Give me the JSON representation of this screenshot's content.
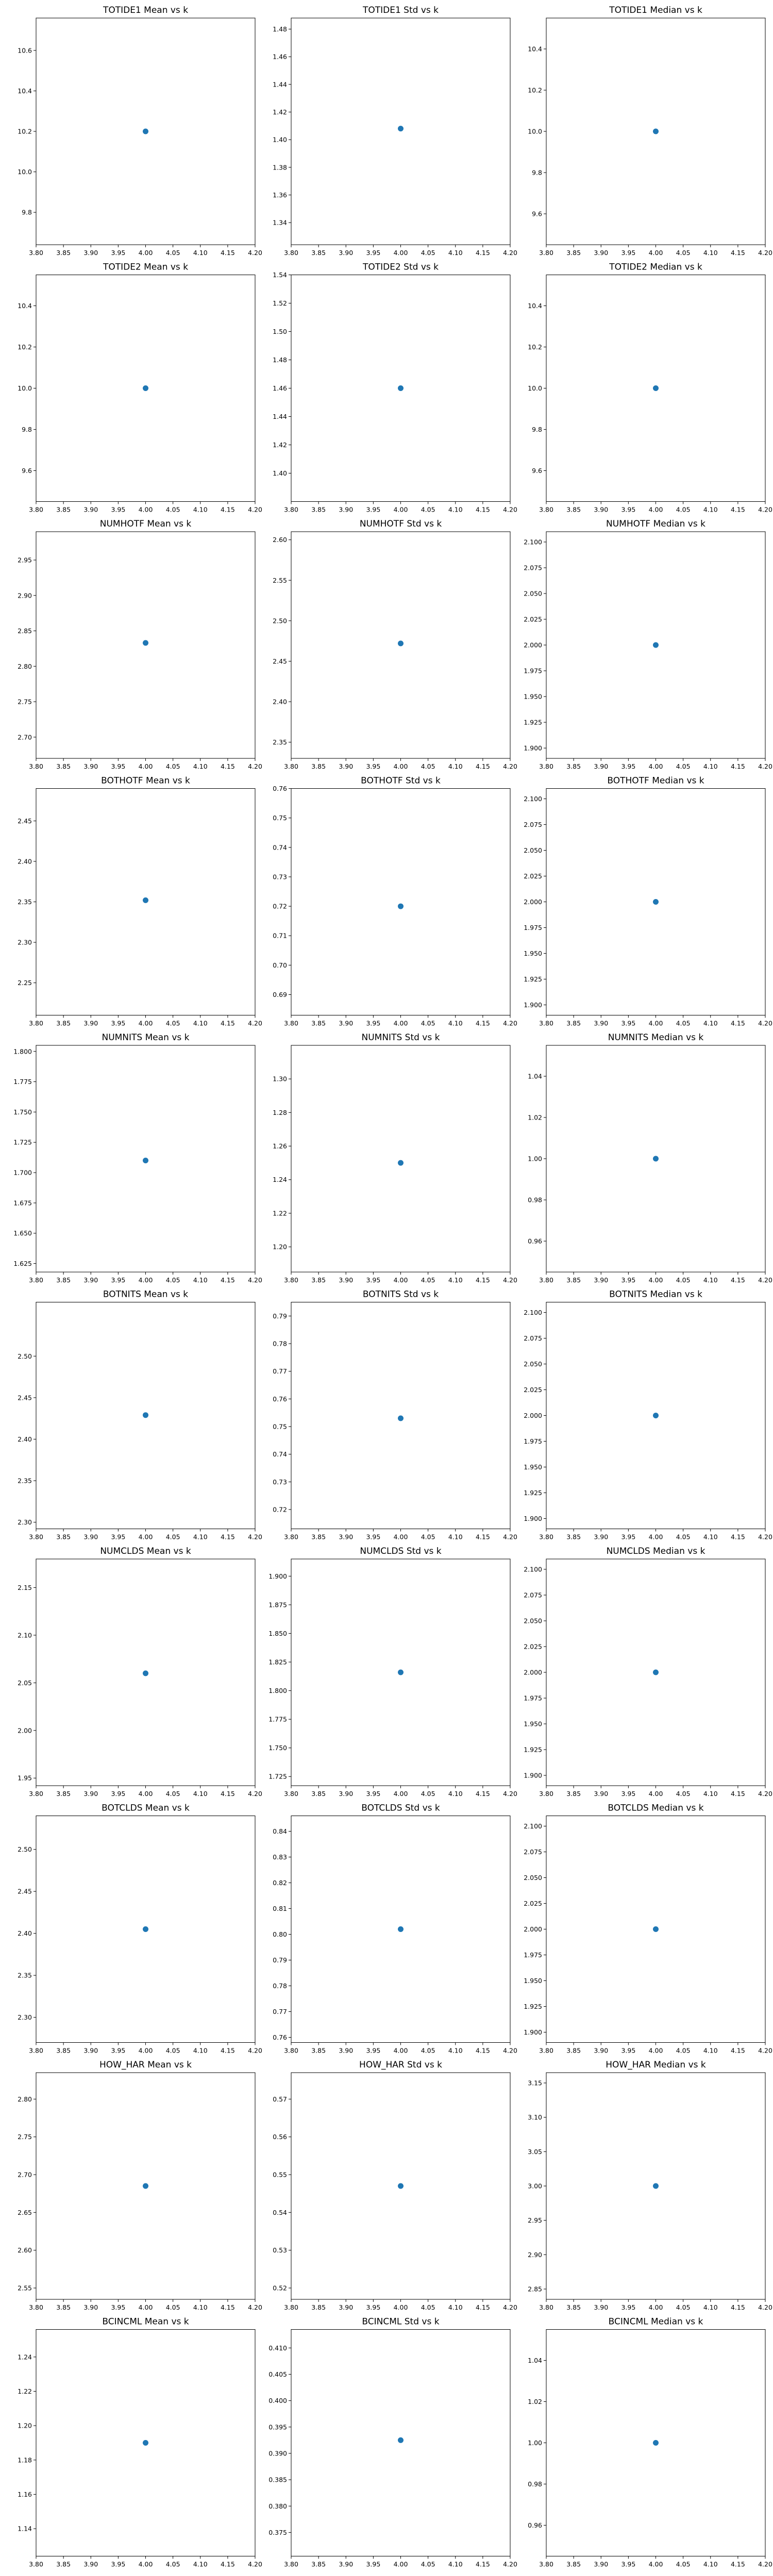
{
  "chart_data": [
    {
      "type": "scatter",
      "title": "TOTIDE1 Mean vs k",
      "x": [
        4.0
      ],
      "y": [
        10.2
      ],
      "xlim": [
        3.8,
        4.2
      ],
      "ylim": [
        9.64,
        10.76
      ],
      "xticks": [
        "3.80",
        "3.85",
        "3.90",
        "3.95",
        "4.00",
        "4.05",
        "4.10",
        "4.15",
        "4.20"
      ],
      "yticks": [
        "9.8",
        "10.0",
        "10.2",
        "10.4",
        "10.6"
      ],
      "grid": false,
      "series_color": "#1f77b4"
    },
    {
      "type": "scatter",
      "title": "TOTIDE1 Std vs k",
      "x": [
        4.0
      ],
      "y": [
        1.408
      ],
      "xlim": [
        3.8,
        4.2
      ],
      "ylim": [
        1.324,
        1.488
      ],
      "xticks": [
        "3.80",
        "3.85",
        "3.90",
        "3.95",
        "4.00",
        "4.05",
        "4.10",
        "4.15",
        "4.20"
      ],
      "yticks": [
        "1.34",
        "1.36",
        "1.38",
        "1.40",
        "1.42",
        "1.44",
        "1.46",
        "1.48"
      ],
      "grid": false,
      "series_color": "#1f77b4"
    },
    {
      "type": "scatter",
      "title": "TOTIDE1 Median vs k",
      "x": [
        4.0
      ],
      "y": [
        10.0
      ],
      "xlim": [
        3.8,
        4.2
      ],
      "ylim": [
        9.45,
        10.55
      ],
      "xticks": [
        "3.80",
        "3.85",
        "3.90",
        "3.95",
        "4.00",
        "4.05",
        "4.10",
        "4.15",
        "4.20"
      ],
      "yticks": [
        "9.6",
        "9.8",
        "10.0",
        "10.2",
        "10.4"
      ],
      "grid": false,
      "series_color": "#1f77b4"
    },
    {
      "type": "scatter",
      "title": "TOTIDE2 Mean vs k",
      "x": [
        4.0
      ],
      "y": [
        10.0
      ],
      "xlim": [
        3.8,
        4.2
      ],
      "ylim": [
        9.45,
        10.55
      ],
      "xticks": [
        "3.80",
        "3.85",
        "3.90",
        "3.95",
        "4.00",
        "4.05",
        "4.10",
        "4.15",
        "4.20"
      ],
      "yticks": [
        "9.6",
        "9.8",
        "10.0",
        "10.2",
        "10.4"
      ],
      "grid": false,
      "series_color": "#1f77b4"
    },
    {
      "type": "scatter",
      "title": "TOTIDE2 Std vs k",
      "x": [
        4.0
      ],
      "y": [
        1.46
      ],
      "xlim": [
        3.8,
        4.2
      ],
      "ylim": [
        1.38,
        1.54
      ],
      "xticks": [
        "3.80",
        "3.85",
        "3.90",
        "3.95",
        "4.00",
        "4.05",
        "4.10",
        "4.15",
        "4.20"
      ],
      "yticks": [
        "1.40",
        "1.42",
        "1.44",
        "1.46",
        "1.48",
        "1.50",
        "1.52",
        "1.54"
      ],
      "grid": false,
      "series_color": "#1f77b4"
    },
    {
      "type": "scatter",
      "title": "TOTIDE2 Median vs k",
      "x": [
        4.0
      ],
      "y": [
        10.0
      ],
      "xlim": [
        3.8,
        4.2
      ],
      "ylim": [
        9.45,
        10.55
      ],
      "xticks": [
        "3.80",
        "3.85",
        "3.90",
        "3.95",
        "4.00",
        "4.05",
        "4.10",
        "4.15",
        "4.20"
      ],
      "yticks": [
        "9.6",
        "9.8",
        "10.0",
        "10.2",
        "10.4"
      ],
      "grid": false,
      "series_color": "#1f77b4"
    },
    {
      "type": "scatter",
      "title": "NUMHOTF Mean vs k",
      "x": [
        4.0
      ],
      "y": [
        2.833
      ],
      "xlim": [
        3.8,
        4.2
      ],
      "ylim": [
        2.67,
        2.99
      ],
      "xticks": [
        "3.80",
        "3.85",
        "3.90",
        "3.95",
        "4.00",
        "4.05",
        "4.10",
        "4.15",
        "4.20"
      ],
      "yticks": [
        "2.70",
        "2.75",
        "2.80",
        "2.85",
        "2.90",
        "2.95"
      ],
      "grid": false,
      "series_color": "#1f77b4"
    },
    {
      "type": "scatter",
      "title": "NUMHOTF Std vs k",
      "x": [
        4.0
      ],
      "y": [
        2.472
      ],
      "xlim": [
        3.8,
        4.2
      ],
      "ylim": [
        2.33,
        2.61
      ],
      "xticks": [
        "3.80",
        "3.85",
        "3.90",
        "3.95",
        "4.00",
        "4.05",
        "4.10",
        "4.15",
        "4.20"
      ],
      "yticks": [
        "2.35",
        "2.40",
        "2.45",
        "2.50",
        "2.55",
        "2.60"
      ],
      "grid": false,
      "series_color": "#1f77b4"
    },
    {
      "type": "scatter",
      "title": "NUMHOTF Median vs k",
      "x": [
        4.0
      ],
      "y": [
        2.0
      ],
      "xlim": [
        3.8,
        4.2
      ],
      "ylim": [
        1.89,
        2.11
      ],
      "xticks": [
        "3.80",
        "3.85",
        "3.90",
        "3.95",
        "4.00",
        "4.05",
        "4.10",
        "4.15",
        "4.20"
      ],
      "yticks": [
        "1.900",
        "1.925",
        "1.950",
        "1.975",
        "2.000",
        "2.025",
        "2.050",
        "2.075",
        "2.100"
      ],
      "grid": false,
      "series_color": "#1f77b4"
    },
    {
      "type": "scatter",
      "title": "BOTHOTF Mean vs k",
      "x": [
        4.0
      ],
      "y": [
        2.352
      ],
      "xlim": [
        3.8,
        4.2
      ],
      "ylim": [
        2.21,
        2.49
      ],
      "xticks": [
        "3.80",
        "3.85",
        "3.90",
        "3.95",
        "4.00",
        "4.05",
        "4.10",
        "4.15",
        "4.20"
      ],
      "yticks": [
        "2.25",
        "2.30",
        "2.35",
        "2.40",
        "2.45"
      ],
      "grid": false,
      "series_color": "#1f77b4"
    },
    {
      "type": "scatter",
      "title": "BOTHOTF Std vs k",
      "x": [
        4.0
      ],
      "y": [
        0.72
      ],
      "xlim": [
        3.8,
        4.2
      ],
      "ylim": [
        0.683,
        0.76
      ],
      "xticks": [
        "3.80",
        "3.85",
        "3.90",
        "3.95",
        "4.00",
        "4.05",
        "4.10",
        "4.15",
        "4.20"
      ],
      "yticks": [
        "0.69",
        "0.70",
        "0.71",
        "0.72",
        "0.73",
        "0.74",
        "0.75",
        "0.76"
      ],
      "grid": false,
      "series_color": "#1f77b4"
    },
    {
      "type": "scatter",
      "title": "BOTHOTF Median vs k",
      "x": [
        4.0
      ],
      "y": [
        2.0
      ],
      "xlim": [
        3.8,
        4.2
      ],
      "ylim": [
        1.89,
        2.11
      ],
      "xticks": [
        "3.80",
        "3.85",
        "3.90",
        "3.95",
        "4.00",
        "4.05",
        "4.10",
        "4.15",
        "4.20"
      ],
      "yticks": [
        "1.900",
        "1.925",
        "1.950",
        "1.975",
        "2.000",
        "2.025",
        "2.050",
        "2.075",
        "2.100"
      ],
      "grid": false,
      "series_color": "#1f77b4"
    },
    {
      "type": "scatter",
      "title": "NUMNITS Mean vs k",
      "x": [
        4.0
      ],
      "y": [
        1.71
      ],
      "xlim": [
        3.8,
        4.2
      ],
      "ylim": [
        1.618,
        1.805
      ],
      "xticks": [
        "3.80",
        "3.85",
        "3.90",
        "3.95",
        "4.00",
        "4.05",
        "4.10",
        "4.15",
        "4.20"
      ],
      "yticks": [
        "1.625",
        "1.650",
        "1.675",
        "1.700",
        "1.725",
        "1.750",
        "1.775",
        "1.800"
      ],
      "grid": false,
      "series_color": "#1f77b4"
    },
    {
      "type": "scatter",
      "title": "NUMNITS Std vs k",
      "x": [
        4.0
      ],
      "y": [
        1.25
      ],
      "xlim": [
        3.8,
        4.2
      ],
      "ylim": [
        1.185,
        1.32
      ],
      "xticks": [
        "3.80",
        "3.85",
        "3.90",
        "3.95",
        "4.00",
        "4.05",
        "4.10",
        "4.15",
        "4.20"
      ],
      "yticks": [
        "1.20",
        "1.22",
        "1.24",
        "1.26",
        "1.28",
        "1.30"
      ],
      "grid": false,
      "series_color": "#1f77b4"
    },
    {
      "type": "scatter",
      "title": "NUMNITS Median vs k",
      "x": [
        4.0
      ],
      "y": [
        1.0
      ],
      "xlim": [
        3.8,
        4.2
      ],
      "ylim": [
        0.945,
        1.055
      ],
      "xticks": [
        "3.80",
        "3.85",
        "3.90",
        "3.95",
        "4.00",
        "4.05",
        "4.10",
        "4.15",
        "4.20"
      ],
      "yticks": [
        "0.96",
        "0.98",
        "1.00",
        "1.02",
        "1.04"
      ],
      "grid": false,
      "series_color": "#1f77b4"
    },
    {
      "type": "scatter",
      "title": "BOTNITS Mean vs k",
      "x": [
        4.0
      ],
      "y": [
        2.429
      ],
      "xlim": [
        3.8,
        4.2
      ],
      "ylim": [
        2.292,
        2.565
      ],
      "xticks": [
        "3.80",
        "3.85",
        "3.90",
        "3.95",
        "4.00",
        "4.05",
        "4.10",
        "4.15",
        "4.20"
      ],
      "yticks": [
        "2.30",
        "2.35",
        "2.40",
        "2.45",
        "2.50"
      ],
      "grid": false,
      "series_color": "#1f77b4"
    },
    {
      "type": "scatter",
      "title": "BOTNITS Std vs k",
      "x": [
        4.0
      ],
      "y": [
        0.753
      ],
      "xlim": [
        3.8,
        4.2
      ],
      "ylim": [
        0.713,
        0.795
      ],
      "xticks": [
        "3.80",
        "3.85",
        "3.90",
        "3.95",
        "4.00",
        "4.05",
        "4.10",
        "4.15",
        "4.20"
      ],
      "yticks": [
        "0.72",
        "0.73",
        "0.74",
        "0.75",
        "0.76",
        "0.77",
        "0.78",
        "0.79"
      ],
      "grid": false,
      "series_color": "#1f77b4"
    },
    {
      "type": "scatter",
      "title": "BOTNITS Median vs k",
      "x": [
        4.0
      ],
      "y": [
        2.0
      ],
      "xlim": [
        3.8,
        4.2
      ],
      "ylim": [
        1.89,
        2.11
      ],
      "xticks": [
        "3.80",
        "3.85",
        "3.90",
        "3.95",
        "4.00",
        "4.05",
        "4.10",
        "4.15",
        "4.20"
      ],
      "yticks": [
        "1.900",
        "1.925",
        "1.950",
        "1.975",
        "2.000",
        "2.025",
        "2.050",
        "2.075",
        "2.100"
      ],
      "grid": false,
      "series_color": "#1f77b4"
    },
    {
      "type": "scatter",
      "title": "NUMCLDS Mean vs k",
      "x": [
        4.0
      ],
      "y": [
        2.06
      ],
      "xlim": [
        3.8,
        4.2
      ],
      "ylim": [
        1.942,
        2.18
      ],
      "xticks": [
        "3.80",
        "3.85",
        "3.90",
        "3.95",
        "4.00",
        "4.05",
        "4.10",
        "4.15",
        "4.20"
      ],
      "yticks": [
        "1.95",
        "2.00",
        "2.05",
        "2.10",
        "2.15"
      ],
      "grid": false,
      "series_color": "#1f77b4"
    },
    {
      "type": "scatter",
      "title": "NUMCLDS Std vs k",
      "x": [
        4.0
      ],
      "y": [
        1.816
      ],
      "xlim": [
        3.8,
        4.2
      ],
      "ylim": [
        1.717,
        1.915
      ],
      "xticks": [
        "3.80",
        "3.85",
        "3.90",
        "3.95",
        "4.00",
        "4.05",
        "4.10",
        "4.15",
        "4.20"
      ],
      "yticks": [
        "1.725",
        "1.750",
        "1.775",
        "1.800",
        "1.825",
        "1.850",
        "1.875",
        "1.900"
      ],
      "grid": false,
      "series_color": "#1f77b4"
    },
    {
      "type": "scatter",
      "title": "NUMCLDS Median vs k",
      "x": [
        4.0
      ],
      "y": [
        2.0
      ],
      "xlim": [
        3.8,
        4.2
      ],
      "ylim": [
        1.89,
        2.11
      ],
      "xticks": [
        "3.80",
        "3.85",
        "3.90",
        "3.95",
        "4.00",
        "4.05",
        "4.10",
        "4.15",
        "4.20"
      ],
      "yticks": [
        "1.900",
        "1.925",
        "1.950",
        "1.975",
        "2.000",
        "2.025",
        "2.050",
        "2.075",
        "2.100"
      ],
      "grid": false,
      "series_color": "#1f77b4"
    },
    {
      "type": "scatter",
      "title": "BOTCLDS Mean vs k",
      "x": [
        4.0
      ],
      "y": [
        2.405
      ],
      "xlim": [
        3.8,
        4.2
      ],
      "ylim": [
        2.27,
        2.54
      ],
      "xticks": [
        "3.80",
        "3.85",
        "3.90",
        "3.95",
        "4.00",
        "4.05",
        "4.10",
        "4.15",
        "4.20"
      ],
      "yticks": [
        "2.30",
        "2.35",
        "2.40",
        "2.45",
        "2.50"
      ],
      "grid": false,
      "series_color": "#1f77b4"
    },
    {
      "type": "scatter",
      "title": "BOTCLDS Std vs k",
      "x": [
        4.0
      ],
      "y": [
        0.802
      ],
      "xlim": [
        3.8,
        4.2
      ],
      "ylim": [
        0.758,
        0.846
      ],
      "xticks": [
        "3.80",
        "3.85",
        "3.90",
        "3.95",
        "4.00",
        "4.05",
        "4.10",
        "4.15",
        "4.20"
      ],
      "yticks": [
        "0.76",
        "0.77",
        "0.78",
        "0.79",
        "0.80",
        "0.81",
        "0.82",
        "0.83",
        "0.84"
      ],
      "grid": false,
      "series_color": "#1f77b4"
    },
    {
      "type": "scatter",
      "title": "BOTCLDS Median vs k",
      "x": [
        4.0
      ],
      "y": [
        2.0
      ],
      "xlim": [
        3.8,
        4.2
      ],
      "ylim": [
        1.89,
        2.11
      ],
      "xticks": [
        "3.80",
        "3.85",
        "3.90",
        "3.95",
        "4.00",
        "4.05",
        "4.10",
        "4.15",
        "4.20"
      ],
      "yticks": [
        "1.900",
        "1.925",
        "1.950",
        "1.975",
        "2.000",
        "2.025",
        "2.050",
        "2.075",
        "2.100"
      ],
      "grid": false,
      "series_color": "#1f77b4"
    },
    {
      "type": "scatter",
      "title": "HOW_HAR Mean vs k",
      "x": [
        4.0
      ],
      "y": [
        2.685
      ],
      "xlim": [
        3.8,
        4.2
      ],
      "ylim": [
        2.535,
        2.835
      ],
      "xticks": [
        "3.80",
        "3.85",
        "3.90",
        "3.95",
        "4.00",
        "4.05",
        "4.10",
        "4.15",
        "4.20"
      ],
      "yticks": [
        "2.55",
        "2.60",
        "2.65",
        "2.70",
        "2.75",
        "2.80"
      ],
      "grid": false,
      "series_color": "#1f77b4"
    },
    {
      "type": "scatter",
      "title": "HOW_HAR Std vs k",
      "x": [
        4.0
      ],
      "y": [
        0.547
      ],
      "xlim": [
        3.8,
        4.2
      ],
      "ylim": [
        0.517,
        0.577
      ],
      "xticks": [
        "3.80",
        "3.85",
        "3.90",
        "3.95",
        "4.00",
        "4.05",
        "4.10",
        "4.15",
        "4.20"
      ],
      "yticks": [
        "0.52",
        "0.53",
        "0.54",
        "0.55",
        "0.56",
        "0.57"
      ],
      "grid": false,
      "series_color": "#1f77b4"
    },
    {
      "type": "scatter",
      "title": "HOW_HAR Median vs k",
      "x": [
        4.0
      ],
      "y": [
        3.0
      ],
      "xlim": [
        3.8,
        4.2
      ],
      "ylim": [
        2.835,
        3.165
      ],
      "xticks": [
        "3.80",
        "3.85",
        "3.90",
        "3.95",
        "4.00",
        "4.05",
        "4.10",
        "4.15",
        "4.20"
      ],
      "yticks": [
        "2.85",
        "2.90",
        "2.95",
        "3.00",
        "3.05",
        "3.10",
        "3.15"
      ],
      "grid": false,
      "series_color": "#1f77b4"
    },
    {
      "type": "scatter",
      "title": "BCINCML Mean vs k",
      "x": [
        4.0
      ],
      "y": [
        1.19
      ],
      "xlim": [
        3.8,
        4.2
      ],
      "ylim": [
        1.124,
        1.256
      ],
      "xticks": [
        "3.80",
        "3.85",
        "3.90",
        "3.95",
        "4.00",
        "4.05",
        "4.10",
        "4.15",
        "4.20"
      ],
      "yticks": [
        "1.14",
        "1.16",
        "1.18",
        "1.20",
        "1.22",
        "1.24"
      ],
      "grid": false,
      "series_color": "#1f77b4"
    },
    {
      "type": "scatter",
      "title": "BCINCML Std vs k",
      "x": [
        4.0
      ],
      "y": [
        0.3925
      ],
      "xlim": [
        3.8,
        4.2
      ],
      "ylim": [
        0.3705,
        0.4135
      ],
      "xticks": [
        "3.80",
        "3.85",
        "3.90",
        "3.95",
        "4.00",
        "4.05",
        "4.10",
        "4.15",
        "4.20"
      ],
      "yticks": [
        "0.375",
        "0.380",
        "0.385",
        "0.390",
        "0.395",
        "0.400",
        "0.405",
        "0.410"
      ],
      "grid": false,
      "series_color": "#1f77b4"
    },
    {
      "type": "scatter",
      "title": "BCINCML Median vs k",
      "x": [
        4.0
      ],
      "y": [
        1.0
      ],
      "xlim": [
        3.8,
        4.2
      ],
      "ylim": [
        0.945,
        1.055
      ],
      "xticks": [
        "3.80",
        "3.85",
        "3.90",
        "3.95",
        "4.00",
        "4.05",
        "4.10",
        "4.15",
        "4.20"
      ],
      "yticks": [
        "0.96",
        "0.98",
        "1.00",
        "1.02",
        "1.04"
      ],
      "grid": false,
      "series_color": "#1f77b4"
    }
  ]
}
